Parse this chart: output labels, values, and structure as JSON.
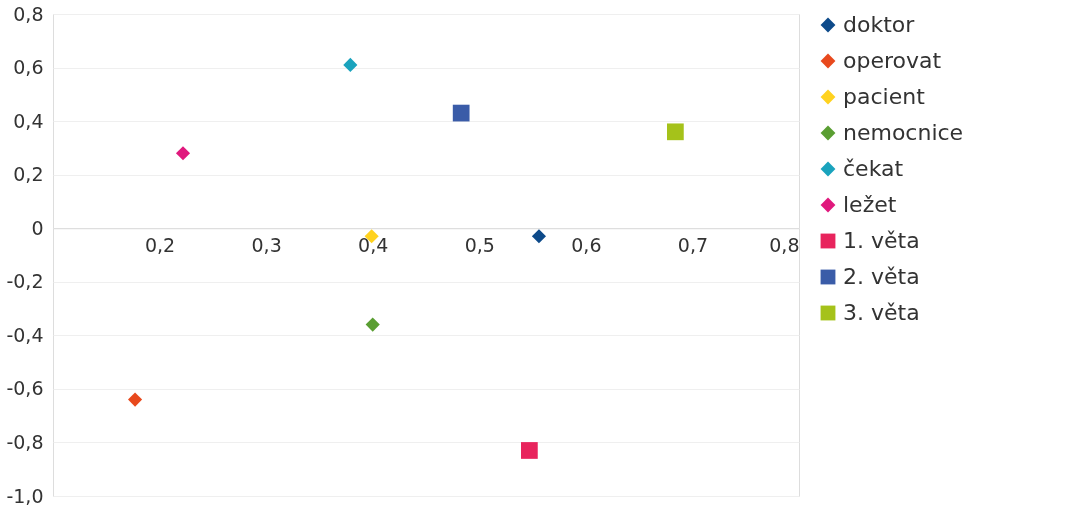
{
  "chart_data": {
    "type": "scatter",
    "xlim": [
      0.1,
      0.8
    ],
    "ylim": [
      -1.0,
      0.8
    ],
    "xticks": [
      {
        "value": 0.2,
        "label": "0,2"
      },
      {
        "value": 0.3,
        "label": "0,3"
      },
      {
        "value": 0.4,
        "label": "0,4"
      },
      {
        "value": 0.5,
        "label": "0,5"
      },
      {
        "value": 0.6,
        "label": "0,6"
      },
      {
        "value": 0.7,
        "label": "0,7"
      },
      {
        "value": 0.8,
        "label": "0,8"
      }
    ],
    "yticks": [
      {
        "value": -1.0,
        "label": "-1,0"
      },
      {
        "value": -0.8,
        "label": "-0,8"
      },
      {
        "value": -0.6,
        "label": "-0,6"
      },
      {
        "value": -0.4,
        "label": "-0,4"
      },
      {
        "value": -0.2,
        "label": "-0,2"
      },
      0,
      {
        "value": 0.2,
        "label": "0,2"
      },
      {
        "value": 0.4,
        "label": "0,4"
      },
      {
        "value": 0.6,
        "label": "0,6"
      },
      {
        "value": 0.8,
        "label": "0,8"
      }
    ],
    "grid": "y",
    "legend": "right",
    "series": [
      {
        "name": "doktor",
        "color": "#0d4a8a",
        "marker": "diamond",
        "x": [
          0.556
        ],
        "values": [
          -0.03
        ]
      },
      {
        "name": "operovat",
        "color": "#e8491d",
        "marker": "diamond",
        "x": [
          0.177
        ],
        "values": [
          -0.64
        ]
      },
      {
        "name": "pacient",
        "color": "#ffd21f",
        "marker": "diamond",
        "x": [
          0.399
        ],
        "values": [
          -0.03
        ]
      },
      {
        "name": "nemocnice",
        "color": "#5a9e32",
        "marker": "diamond",
        "x": [
          0.4
        ],
        "values": [
          -0.36
        ]
      },
      {
        "name": "čekat",
        "color": "#1aa3bd",
        "marker": "diamond",
        "x": [
          0.379
        ],
        "values": [
          0.61
        ]
      },
      {
        "name": "ležet",
        "color": "#e0197d",
        "marker": "diamond",
        "x": [
          0.222
        ],
        "values": [
          0.28
        ]
      },
      {
        "name": "1. věta",
        "color": "#e8245d",
        "marker": "square",
        "x": [
          0.547
        ],
        "values": [
          -0.83
        ]
      },
      {
        "name": "2. věta",
        "color": "#3a5ca8",
        "marker": "square",
        "x": [
          0.483
        ],
        "values": [
          0.43
        ]
      },
      {
        "name": "3. věta",
        "color": "#a5c21a",
        "marker": "square",
        "x": [
          0.684
        ],
        "values": [
          0.36
        ]
      }
    ]
  }
}
